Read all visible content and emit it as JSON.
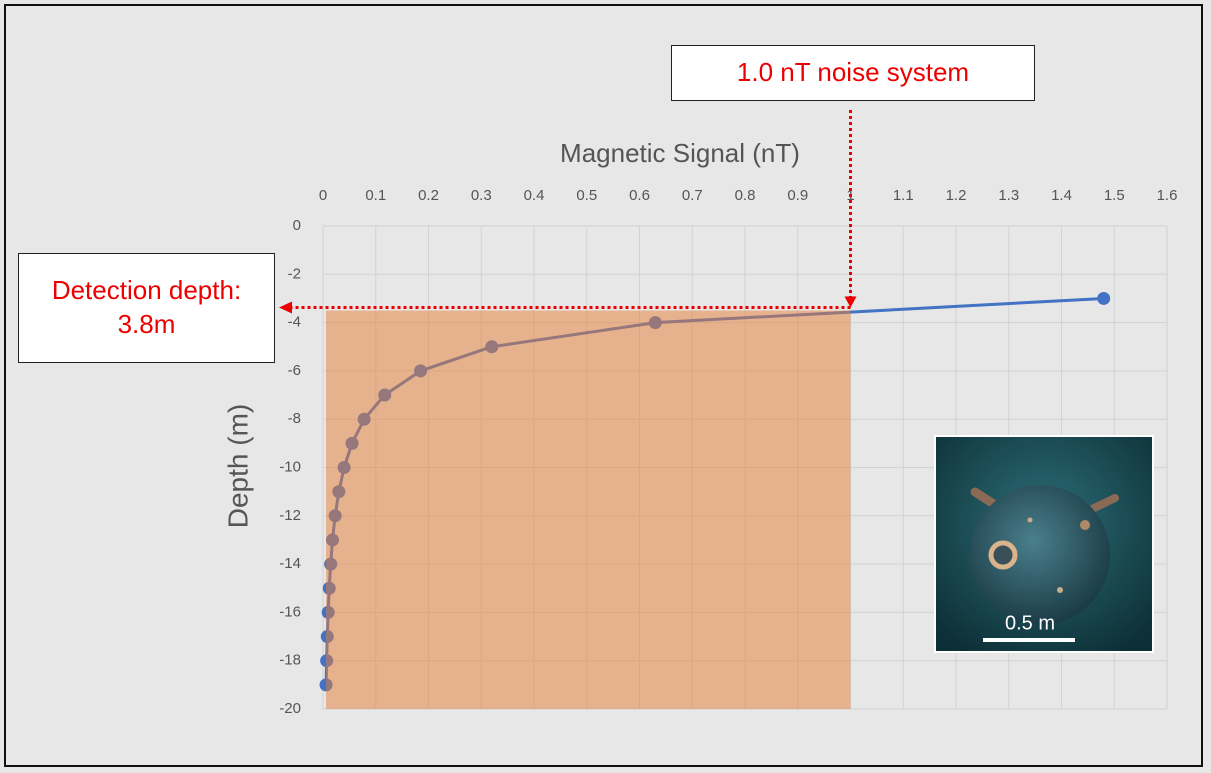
{
  "chart_data": {
    "type": "line",
    "xlabel": "Magnetic Signal (nT)",
    "ylabel": "Depth (m)",
    "xlim": [
      0,
      1.6
    ],
    "xticks": [
      0,
      0.1,
      0.2,
      0.3,
      0.4,
      0.5,
      0.6,
      0.7,
      0.8,
      0.9,
      1,
      1.1,
      1.2,
      1.3,
      1.4,
      1.5,
      1.6
    ],
    "ylim": [
      -20,
      0
    ],
    "yticks": [
      0,
      -2,
      -4,
      -6,
      -8,
      -10,
      -12,
      -14,
      -16,
      -18,
      -20
    ],
    "grid": true,
    "series": [
      {
        "color": "#4472c4",
        "x": [
          1.48,
          0.63,
          0.32,
          0.185,
          0.117,
          0.078,
          0.055,
          0.04,
          0.03,
          0.023,
          0.018,
          0.0146,
          0.0118,
          0.0098,
          0.0081,
          0.0069,
          0.0058
        ],
        "values": [
          -3,
          -4,
          -5,
          -6,
          -7,
          -8,
          -9,
          -10,
          -11,
          -12,
          -13,
          -14,
          -15,
          -16,
          -17,
          -18,
          -19
        ]
      }
    ],
    "noise_region": {
      "color": "#e57b34",
      "x": [
        0,
        1
      ],
      "y": [
        -20,
        -3.5
      ]
    },
    "annotations": [
      {
        "text": "1.0 nT noise system"
      },
      {
        "text": "Detection depth: 3.8m"
      }
    ],
    "inset": {
      "label": "0.5 m"
    }
  }
}
